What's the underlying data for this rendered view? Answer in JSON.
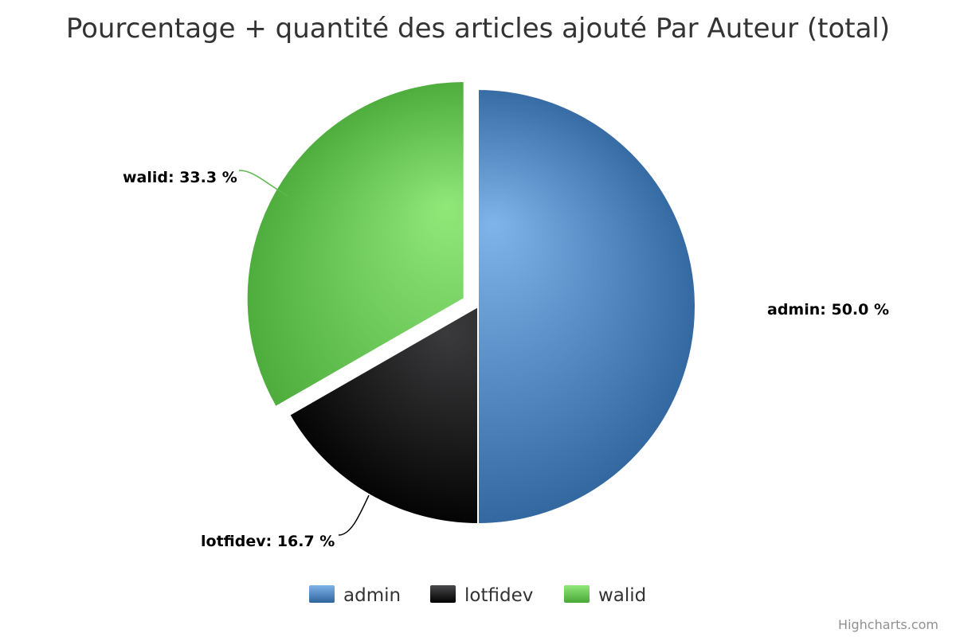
{
  "chart_data": {
    "type": "pie",
    "title": "Pourcentage + quantité des articles ajouté Par Auteur (total)",
    "categories": [
      "admin",
      "lotfidev",
      "walid"
    ],
    "values": [
      50.0,
      16.7,
      33.3
    ],
    "data_labels": [
      "admin: 50.0 %",
      "lotfidev: 16.7 %",
      "walid: 33.3 %"
    ],
    "colors": [
      "#4572A7",
      "#1a1a1a",
      "#5ab94a"
    ],
    "sliced": [
      false,
      false,
      true
    ],
    "legend": {
      "placement": "bottom-center",
      "entries": [
        "admin",
        "lotfidev",
        "walid"
      ]
    }
  },
  "credits": "Highcharts.com"
}
